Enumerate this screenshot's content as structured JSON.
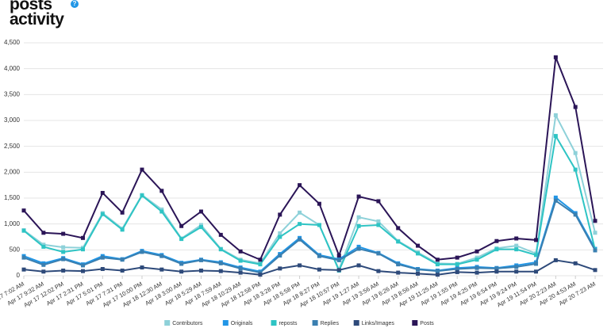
{
  "chart_data": {
    "type": "line",
    "title": "posts activity",
    "categories": [
      "Apr 17 7:02 AM",
      "Apr 17 9:32 AM",
      "Apr 17 12:02 PM",
      "Apr 17 2:31 PM",
      "Apr 17 5:01 PM",
      "Apr 17 7:31 PM",
      "Apr 17 10:00 PM",
      "Apr 18 12:30 AM",
      "Apr 18 3:00 AM",
      "Apr 18 5:29 AM",
      "Apr 18 7:59 AM",
      "Apr 18 10:29 AM",
      "Apr 18 12:58 PM",
      "Apr 18 3:28 PM",
      "Apr 18 5:58 PM",
      "Apr 18 8:27 PM",
      "Apr 18 10:57 PM",
      "Apr 19 1:27 AM",
      "Apr 19 3:56 AM",
      "Apr 19 6:26 AM",
      "Apr 19 8:56 AM",
      "Apr 19 11:25 AM",
      "Apr 19 1:55 PM",
      "Apr 19 4:25 PM",
      "Apr 19 6:54 PM",
      "Apr 19 9:24 PM",
      "Apr 19 11:54 PM",
      "Apr 20 2:23 AM",
      "Apr 20 4:53 AM",
      "Apr 20 7:23 AM"
    ],
    "series": [
      {
        "name": "Contributors",
        "color": "#8ed1d9",
        "values": [
          880,
          600,
          550,
          540,
          1210,
          910,
          1560,
          1280,
          720,
          980,
          520,
          310,
          240,
          820,
          1220,
          980,
          120,
          1130,
          1050,
          670,
          450,
          240,
          230,
          350,
          530,
          580,
          430,
          3100,
          2370,
          830
        ]
      },
      {
        "name": "Originals",
        "color": "#2196e6",
        "values": [
          380,
          240,
          340,
          220,
          380,
          320,
          480,
          400,
          250,
          310,
          260,
          160,
          80,
          420,
          730,
          400,
          320,
          560,
          440,
          240,
          130,
          100,
          150,
          170,
          150,
          200,
          260,
          1510,
          1210,
          520
        ]
      },
      {
        "name": "reposts",
        "color": "#2ec4c4",
        "values": [
          870,
          560,
          460,
          510,
          1190,
          890,
          1550,
          1240,
          710,
          940,
          510,
          290,
          220,
          750,
          1000,
          980,
          100,
          960,
          980,
          660,
          430,
          220,
          220,
          310,
          510,
          510,
          400,
          2700,
          2050,
          500
        ]
      },
      {
        "name": "Replies",
        "color": "#3a7fb0",
        "values": [
          350,
          210,
          320,
          200,
          350,
          310,
          460,
          380,
          230,
          300,
          240,
          140,
          60,
          390,
          700,
          380,
          300,
          520,
          430,
          220,
          120,
          90,
          130,
          150,
          140,
          170,
          230,
          1450,
          1180,
          490
        ]
      },
      {
        "name": "Links/Images",
        "color": "#2e4a7a",
        "values": [
          120,
          80,
          100,
          90,
          130,
          100,
          160,
          120,
          80,
          100,
          90,
          60,
          20,
          140,
          200,
          120,
          110,
          200,
          90,
          60,
          40,
          20,
          70,
          60,
          80,
          80,
          80,
          300,
          240,
          110
        ]
      },
      {
        "name": "Posts",
        "color": "#2b1557",
        "values": [
          1260,
          830,
          810,
          730,
          1600,
          1220,
          2050,
          1640,
          960,
          1240,
          790,
          470,
          310,
          1180,
          1750,
          1390,
          390,
          1530,
          1440,
          920,
          580,
          310,
          350,
          470,
          670,
          720,
          690,
          4220,
          3260,
          1060
        ]
      }
    ],
    "ylim": [
      0,
      4500
    ],
    "yticks": [
      0,
      500,
      {
        "value": 1000,
        "label": "1,000"
      },
      {
        "value": 1500,
        "label": "1,500"
      },
      {
        "value": 2000,
        "label": "2,000"
      },
      {
        "value": 2500,
        "label": "2,500"
      },
      {
        "value": 3000,
        "label": "3,000"
      },
      {
        "value": 3500,
        "label": "3,500"
      },
      {
        "value": 4000,
        "label": "4,000"
      },
      {
        "value": 4500,
        "label": "4,500"
      }
    ],
    "grid": true
  }
}
